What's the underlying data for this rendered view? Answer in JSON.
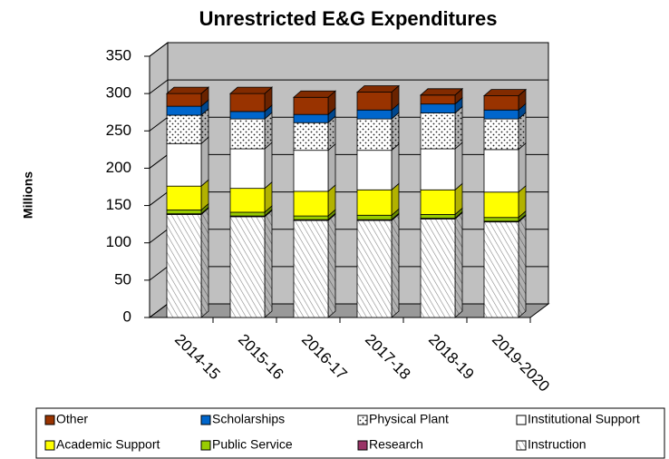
{
  "chart_data": {
    "type": "bar3d-stacked",
    "title": "Unrestricted E&G Expenditures",
    "y_label": "Millions",
    "categories": [
      "2014-15",
      "2015-16",
      "2016-17",
      "2017-18",
      "2018-19",
      "2019-2020"
    ],
    "series": [
      {
        "name": "Instruction",
        "color": "#ffffff",
        "pattern": "hatch",
        "values": [
          138,
          135,
          130,
          130,
          132,
          128
        ]
      },
      {
        "name": "Research",
        "color": "#993366",
        "values": [
          1,
          1,
          1,
          1,
          1,
          1
        ]
      },
      {
        "name": "Public Service",
        "color": "#99cc00",
        "values": [
          5,
          5,
          5,
          6,
          5,
          5
        ]
      },
      {
        "name": "Academic Support",
        "color": "#ffff00",
        "values": [
          32,
          32,
          33,
          34,
          33,
          34
        ]
      },
      {
        "name": "Institutional Support",
        "color": "#ffffff",
        "values": [
          57,
          53,
          55,
          53,
          55,
          57
        ]
      },
      {
        "name": "Physical Plant",
        "color": "#ffffff",
        "pattern": "dots",
        "values": [
          38,
          40,
          37,
          42,
          48,
          41
        ]
      },
      {
        "name": "Scholarships",
        "color": "#0066cc",
        "values": [
          12,
          10,
          11,
          12,
          12,
          12
        ]
      },
      {
        "name": "Other",
        "color": "#993300",
        "values": [
          17,
          24,
          23,
          24,
          12,
          19
        ]
      }
    ],
    "ylim": [
      0,
      350
    ],
    "yticks": [
      0,
      50,
      100,
      150,
      200,
      250,
      300,
      350
    ],
    "grid": true,
    "wall_color": "#c0c0c0"
  }
}
